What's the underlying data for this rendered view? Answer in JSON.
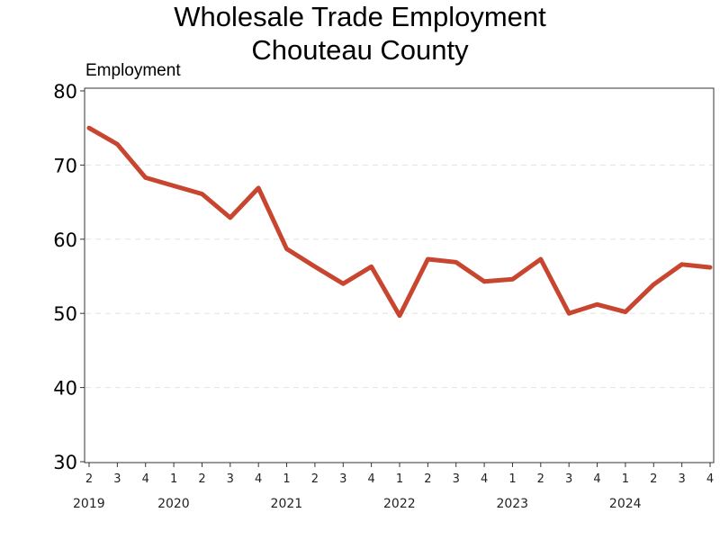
{
  "chart_data": {
    "type": "line",
    "title": "Wholesale Trade Employment",
    "subtitle": "Chouteau County",
    "ylabel": "Employment",
    "xlabel": "",
    "ylim": [
      30,
      80
    ],
    "yticks": [
      30,
      40,
      50,
      60,
      70,
      80
    ],
    "grid": "horizontal dashed",
    "color": "#c8452f",
    "x": [
      "2019 Q2",
      "2019 Q3",
      "2019 Q4",
      "2020 Q1",
      "2020 Q2",
      "2020 Q3",
      "2020 Q4",
      "2021 Q1",
      "2021 Q2",
      "2021 Q3",
      "2021 Q4",
      "2022 Q1",
      "2022 Q2",
      "2022 Q3",
      "2022 Q4",
      "2023 Q1",
      "2023 Q2",
      "2023 Q3",
      "2023 Q4",
      "2024 Q1",
      "2024 Q2",
      "2024 Q3",
      "2024 Q4"
    ],
    "quarter_labels": [
      "2",
      "3",
      "4",
      "1",
      "2",
      "3",
      "4",
      "1",
      "2",
      "3",
      "4",
      "1",
      "2",
      "3",
      "4",
      "1",
      "2",
      "3",
      "4",
      "1",
      "2",
      "3",
      "4"
    ],
    "year_labels": [
      {
        "label": "2019",
        "index": 0
      },
      {
        "label": "2020",
        "index": 3
      },
      {
        "label": "2021",
        "index": 7
      },
      {
        "label": "2022",
        "index": 11
      },
      {
        "label": "2023",
        "index": 15
      },
      {
        "label": "2024",
        "index": 19
      }
    ],
    "series": [
      {
        "values": [
          75.0,
          72.8,
          68.3,
          67.2,
          66.1,
          62.9,
          66.9,
          58.7,
          56.3,
          54.0,
          56.3,
          49.7,
          57.3,
          56.9,
          54.3,
          54.6,
          57.3,
          50.0,
          51.2,
          50.2,
          53.9,
          56.6,
          56.2
        ]
      }
    ]
  }
}
